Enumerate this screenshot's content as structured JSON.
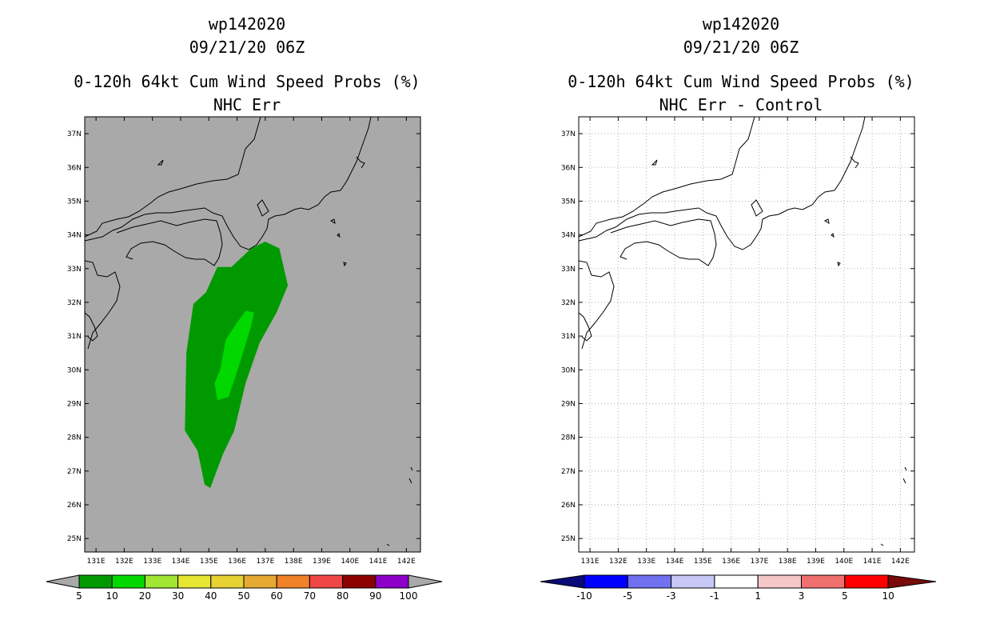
{
  "panels": [
    {
      "id": "left",
      "title_lines": [
        "wp142020",
        "09/21/20 06Z",
        "0-120h 64kt Cum Wind Speed Probs (%)",
        "NHC Err"
      ],
      "background": "#a9a9a9",
      "grid": false,
      "colorbar": {
        "labels": [
          "5",
          "10",
          "20",
          "30",
          "40",
          "50",
          "60",
          "70",
          "80",
          "90",
          "100"
        ],
        "colors": [
          "#009a00",
          "#00d800",
          "#a0e632",
          "#e6e633",
          "#e6d233",
          "#e6aa33",
          "#f08228",
          "#f04646",
          "#8c0000",
          "#8c00c8"
        ],
        "end_left": "#a9a9a9",
        "end_right": "#a9a9a9"
      }
    },
    {
      "id": "right",
      "title_lines": [
        "wp142020",
        "09/21/20 06Z",
        "0-120h 64kt Cum Wind Speed Probs (%)",
        "NHC Err - Control"
      ],
      "background": "#ffffff",
      "grid": true,
      "colorbar": {
        "labels": [
          "-10",
          "-5",
          "-3",
          "-1",
          "1",
          "3",
          "5",
          "10"
        ],
        "colors": [
          "#0000ff",
          "#7070f0",
          "#c8c8f5",
          "#ffffff",
          "#f5c8c8",
          "#f07070",
          "#ff0000"
        ],
        "end_left": "#0a0a78",
        "end_right": "#780a0a"
      }
    }
  ],
  "axes": {
    "lon_labels": [
      "131E",
      "132E",
      "133E",
      "134E",
      "135E",
      "136E",
      "137E",
      "138E",
      "139E",
      "140E",
      "141E",
      "142E"
    ],
    "lat_labels": [
      "37N",
      "36N",
      "35N",
      "34N",
      "33N",
      "32N",
      "31N",
      "30N",
      "29N",
      "28N",
      "27N",
      "26N",
      "25N"
    ]
  },
  "prob_field": {
    "outer_5pct": [
      [
        137.0,
        33.8
      ],
      [
        137.5,
        33.6
      ],
      [
        137.8,
        32.5
      ],
      [
        137.4,
        31.7
      ],
      [
        136.8,
        30.8
      ],
      [
        136.3,
        29.6
      ],
      [
        135.9,
        28.2
      ],
      [
        135.5,
        27.5
      ],
      [
        135.05,
        26.5
      ],
      [
        134.85,
        26.6
      ],
      [
        134.6,
        27.6
      ],
      [
        134.15,
        28.2
      ],
      [
        134.2,
        30.5
      ],
      [
        134.45,
        31.95
      ],
      [
        134.9,
        32.3
      ],
      [
        135.3,
        33.05
      ],
      [
        135.8,
        33.05
      ],
      [
        136.5,
        33.6
      ]
    ],
    "inner_10pct": [
      [
        136.3,
        31.75
      ],
      [
        136.6,
        31.7
      ],
      [
        136.5,
        31.3
      ],
      [
        136.1,
        30.2
      ],
      [
        135.7,
        29.2
      ],
      [
        135.3,
        29.1
      ],
      [
        135.2,
        29.6
      ],
      [
        135.4,
        30.0
      ],
      [
        135.6,
        30.9
      ],
      [
        136.0,
        31.4
      ]
    ]
  }
}
